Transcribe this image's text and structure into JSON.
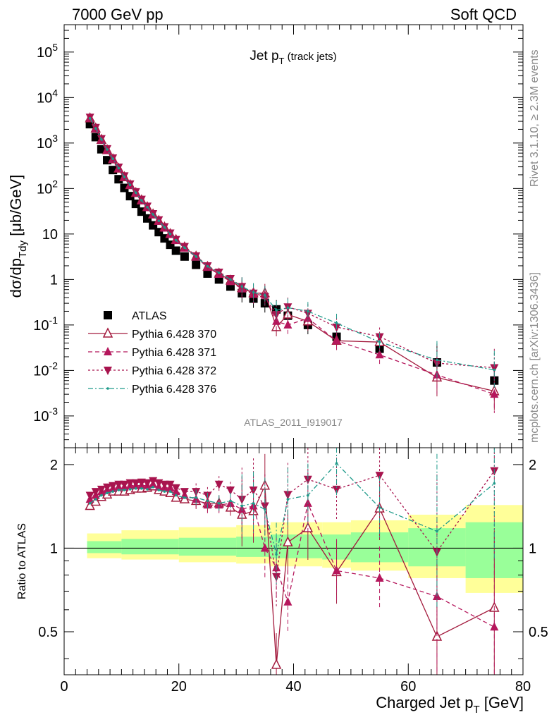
{
  "header": {
    "left": "7000 GeV pp",
    "right": "Soft QCD"
  },
  "side_labels": {
    "rivet": "Rivet 3.1.10, ≥ 2.3M events",
    "mcplots": "mcplots.cern.ch [arXiv:1306.3436]"
  },
  "chart_data": [
    {
      "type": "scatter",
      "title": "Jet pT (track jets)",
      "title_main": "Jet p",
      "title_sub": "T",
      "title_paren": "(track jets)",
      "ylabel": "dσ/dp_Tdy [μb/GeV]",
      "ylabel_parts": {
        "a": "dσ/dp",
        "sub": "Tdy",
        "b": " [μb/GeV]"
      },
      "yscale": "log",
      "ylim": [
        0.0002,
        400000
      ],
      "xlim": [
        0,
        80
      ],
      "watermark": "ATLAS_2011_I919017",
      "y_tick_labels": [
        "10^-3",
        "10^-2",
        "10^-1",
        "1",
        "10",
        "10^2",
        "10^3",
        "10^4",
        "10^5"
      ],
      "legend_position": "bottom-left",
      "legend": [
        "ATLAS",
        "Pythia 6.428 370",
        "Pythia 6.428 371",
        "Pythia 6.428 372",
        "Pythia 6.428 376"
      ],
      "x": [
        4.5,
        5.5,
        6.5,
        7.5,
        8.5,
        9.5,
        10.5,
        11.5,
        12.5,
        13.5,
        14.5,
        15.5,
        16.5,
        17.5,
        18.5,
        19.5,
        21,
        23,
        25,
        27,
        29,
        31,
        33,
        35,
        37,
        39,
        42.5,
        47.5,
        55,
        65,
        75
      ],
      "series": [
        {
          "name": "ATLAS",
          "values": [
            2600,
            1350,
            730,
            420,
            255,
            160,
            103,
            68,
            46,
            31,
            22,
            15.5,
            11,
            8,
            5.8,
            4.3,
            3.2,
            2.1,
            1.35,
            1.0,
            0.7,
            0.5,
            0.38,
            0.3,
            0.22,
            0.16,
            0.1,
            0.055,
            0.03,
            0.015,
            0.006
          ]
        },
        {
          "name": "Pythia 6.428 370",
          "values": [
            3500,
            2100,
            1180,
            700,
            440,
            275,
            178,
            119,
            80,
            55,
            39,
            27,
            19.5,
            14,
            10,
            7.4,
            5.1,
            3.2,
            1.9,
            1.35,
            0.95,
            0.65,
            0.5,
            0.5,
            0.09,
            0.17,
            0.12,
            0.045,
            0.042,
            0.007,
            0.0035
          ]
        },
        {
          "name": "Pythia 6.428 371",
          "values": [
            3500,
            2050,
            1160,
            700,
            440,
            275,
            177,
            118,
            80,
            54,
            38,
            26.5,
            19,
            13.5,
            9.8,
            7.2,
            4.9,
            3.1,
            1.85,
            1.3,
            0.9,
            0.62,
            0.47,
            0.45,
            0.12,
            0.1,
            0.14,
            0.045,
            0.022,
            0.008,
            0.003
          ]
        },
        {
          "name": "Pythia 6.428 372",
          "values": [
            3700,
            2200,
            1250,
            750,
            470,
            295,
            190,
            126,
            85,
            58,
            41,
            28,
            20.5,
            14.5,
            10.5,
            7.6,
            5.3,
            3.3,
            2.0,
            1.45,
            1.05,
            0.7,
            0.5,
            0.42,
            0.17,
            0.25,
            0.18,
            0.09,
            0.055,
            0.0145,
            0.0115
          ]
        },
        {
          "name": "Pythia 6.428 376",
          "values": [
            3500,
            2100,
            1200,
            720,
            450,
            280,
            180,
            120,
            81,
            55,
            39,
            27,
            19.5,
            14,
            10,
            7.3,
            5.0,
            3.2,
            1.95,
            1.4,
            1.0,
            0.7,
            0.52,
            0.45,
            0.21,
            0.24,
            0.2,
            0.11,
            0.042,
            0.017,
            0.0103
          ]
        }
      ]
    },
    {
      "type": "scatter",
      "ylabel": "Ratio to ATLAS",
      "xlabel": "Charged Jet pT [GeV]",
      "xlabel_parts": {
        "a": "Charged Jet p",
        "sub": "T",
        "b": " [GeV]"
      },
      "xlim": [
        0,
        80
      ],
      "ylim": [
        0.35,
        2.3
      ],
      "x_tick_labels": [
        "0",
        "20",
        "40",
        "60",
        "80"
      ],
      "y_tick_labels": [
        "0.5",
        "1",
        "2"
      ],
      "band_yellow": [
        {
          "x": [
            4,
            10
          ],
          "lo": 0.92,
          "hi": 1.13
        },
        {
          "x": [
            10,
            20
          ],
          "lo": 0.91,
          "hi": 1.16
        },
        {
          "x": [
            20,
            30
          ],
          "lo": 0.89,
          "hi": 1.19
        },
        {
          "x": [
            30,
            36
          ],
          "lo": 0.88,
          "hi": 1.21
        },
        {
          "x": [
            36,
            45
          ],
          "lo": 0.86,
          "hi": 1.24
        },
        {
          "x": [
            45,
            50
          ],
          "lo": 0.85,
          "hi": 1.24
        },
        {
          "x": [
            50,
            60
          ],
          "lo": 0.83,
          "hi": 1.26
        },
        {
          "x": [
            60,
            70
          ],
          "lo": 0.78,
          "hi": 1.32
        },
        {
          "x": [
            70,
            80
          ],
          "lo": 0.69,
          "hi": 1.43
        }
      ],
      "band_green": [
        {
          "x": [
            4,
            10
          ],
          "lo": 0.96,
          "hi": 1.06
        },
        {
          "x": [
            10,
            20
          ],
          "lo": 0.95,
          "hi": 1.08
        },
        {
          "x": [
            20,
            30
          ],
          "lo": 0.94,
          "hi": 1.09
        },
        {
          "x": [
            30,
            36
          ],
          "lo": 0.93,
          "hi": 1.1
        },
        {
          "x": [
            36,
            45
          ],
          "lo": 0.92,
          "hi": 1.12
        },
        {
          "x": [
            45,
            50
          ],
          "lo": 0.91,
          "hi": 1.12
        },
        {
          "x": [
            50,
            60
          ],
          "lo": 0.89,
          "hi": 1.14
        },
        {
          "x": [
            60,
            70
          ],
          "lo": 0.86,
          "hi": 1.18
        },
        {
          "x": [
            70,
            80
          ],
          "lo": 0.78,
          "hi": 1.24
        }
      ],
      "series": [
        {
          "name": "Pythia 6.428 370",
          "values": [
            1.42,
            1.47,
            1.53,
            1.56,
            1.6,
            1.6,
            1.6,
            1.62,
            1.64,
            1.64,
            1.65,
            1.67,
            1.62,
            1.6,
            1.58,
            1.52,
            1.5,
            1.48,
            1.45,
            1.45,
            1.4,
            1.32,
            1.36,
            1.68,
            0.38,
            1.05,
            1.18,
            0.82,
            1.39,
            0.48,
            0.61
          ]
        },
        {
          "name": "Pythia 6.428 371",
          "values": [
            1.5,
            1.55,
            1.6,
            1.62,
            1.64,
            1.66,
            1.66,
            1.68,
            1.68,
            1.68,
            1.68,
            1.7,
            1.66,
            1.65,
            1.65,
            1.6,
            1.55,
            1.5,
            1.43,
            1.43,
            1.45,
            1.38,
            1.42,
            1.0,
            0.85,
            0.64,
            1.45,
            0.83,
            0.78,
            0.67,
            0.52
          ]
        },
        {
          "name": "Pythia 6.428 372",
          "values": [
            1.55,
            1.6,
            1.63,
            1.66,
            1.68,
            1.7,
            1.7,
            1.72,
            1.72,
            1.73,
            1.72,
            1.75,
            1.72,
            1.7,
            1.7,
            1.65,
            1.6,
            1.6,
            1.55,
            1.7,
            1.62,
            1.5,
            1.62,
            1.42,
            0.79,
            1.56,
            1.77,
            1.63,
            1.83,
            0.97,
            1.9
          ]
        },
        {
          "name": "Pythia 6.428 376",
          "values": [
            1.45,
            1.5,
            1.55,
            1.58,
            1.6,
            1.62,
            1.62,
            1.63,
            1.64,
            1.64,
            1.63,
            1.66,
            1.62,
            1.6,
            1.6,
            1.55,
            1.52,
            1.52,
            1.48,
            1.45,
            1.48,
            1.42,
            1.45,
            1.38,
            0.95,
            1.5,
            1.55,
            2.02,
            1.4,
            1.15,
            1.71
          ]
        }
      ]
    }
  ],
  "colors": {
    "ATLAS": "#000000",
    "Pythia 6.428 370": "#a31a3d",
    "Pythia 6.428 371": "#b5175c",
    "Pythia 6.428 372": "#a8144e",
    "Pythia 6.428 376": "#1e9a8a",
    "band_yellow": "#ffff99",
    "band_green": "#99ff99"
  }
}
